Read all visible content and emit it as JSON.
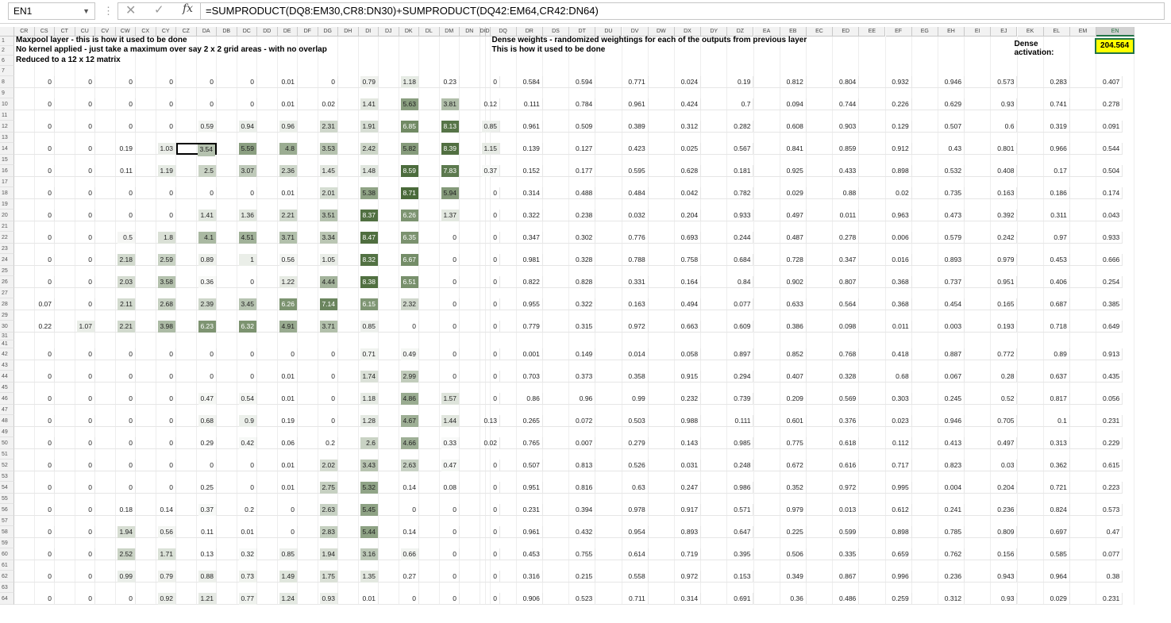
{
  "formula_bar": {
    "name_box": "EN1",
    "fx": "fx",
    "formula": "=SUMPRODUCT(DQ8:EM30,CR8:DN30)+SUMPRODUCT(DQ42:EM64,CR42:DN64)"
  },
  "columns": [
    "CR",
    "CS",
    "CT",
    "CU",
    "CV",
    "CW",
    "CX",
    "CY",
    "CZ",
    "DA",
    "DB",
    "DC",
    "DD",
    "DE",
    "DF",
    "DG",
    "DH",
    "DI",
    "DJ",
    "DK",
    "DL",
    "DM",
    "DN",
    "DO",
    "DP",
    "DQ",
    "DR",
    "DS",
    "DT",
    "DU",
    "DV",
    "DW",
    "DX",
    "DY",
    "DZ",
    "EA",
    "EB",
    "EC",
    "ED",
    "EE",
    "EF",
    "EG",
    "EH",
    "EI",
    "EJ",
    "EK",
    "EL",
    "EM",
    "EN"
  ],
  "rows": [
    "1",
    "2",
    "6",
    "7",
    "8",
    "9",
    "10",
    "11",
    "12",
    "13",
    "14",
    "15",
    "16",
    "17",
    "18",
    "19",
    "20",
    "21",
    "22",
    "23",
    "24",
    "25",
    "26",
    "27",
    "28",
    "29",
    "30",
    "31",
    "41",
    "42",
    "43",
    "44",
    "45",
    "46",
    "47",
    "48",
    "49",
    "50",
    "51",
    "52",
    "53",
    "54",
    "55",
    "56",
    "57",
    "58",
    "59",
    "60",
    "61",
    "62",
    "63",
    "64"
  ],
  "text": {
    "maxpool_line1": "Maxpool  layer - this is how it used to be done",
    "maxpool_line2": "No kernel applied - just take a maximum over say 2 x 2 grid areas - with no overlap",
    "maxpool_line3": "Reduced to a 12 x 12 matrix",
    "dense_line1": "Dense weights - randomized weightings for each of the outputs from previous layer",
    "dense_line2": "This is how it used to be done",
    "dense_activation_label": "Dense activation:",
    "dense_activation_value": "204.564"
  },
  "maxpool": [
    [
      "0",
      "0",
      "0",
      "0",
      "0",
      "0",
      "0.01",
      "0",
      "0.79",
      "1.18",
      "0.23",
      "0"
    ],
    [
      "0",
      "0",
      "0",
      "0",
      "0",
      "0",
      "0.01",
      "0.02",
      "1.41",
      "5.63",
      "3.81",
      "0.12"
    ],
    [
      "0",
      "0",
      "0",
      "0",
      "0.59",
      "0.94",
      "0.96",
      "2.31",
      "1.91",
      "6.85",
      "8.13",
      "0.85"
    ],
    [
      "0",
      "0",
      "0.19",
      "1.03",
      "3.54",
      "5.59",
      "4.8",
      "3.53",
      "2.42",
      "5.82",
      "8.39",
      "1.15"
    ],
    [
      "0",
      "0",
      "0.11",
      "1.19",
      "2.5",
      "3.07",
      "2.36",
      "1.45",
      "1.48",
      "8.59",
      "7.83",
      "0.37"
    ],
    [
      "0",
      "0",
      "0",
      "0",
      "0",
      "0",
      "0.01",
      "2.01",
      "5.38",
      "8.71",
      "5.94",
      "0"
    ],
    [
      "0",
      "0",
      "0",
      "0",
      "1.41",
      "1.36",
      "2.21",
      "3.51",
      "8.37",
      "6.26",
      "1.37",
      "0"
    ],
    [
      "0",
      "0",
      "0.5",
      "1.8",
      "4.1",
      "4.51",
      "3.71",
      "3.34",
      "8.47",
      "6.35",
      "0",
      "0"
    ],
    [
      "0",
      "0",
      "2.18",
      "2.59",
      "0.89",
      "1",
      "0.56",
      "1.05",
      "8.32",
      "6.67",
      "0",
      "0"
    ],
    [
      "0",
      "0",
      "2.03",
      "3.58",
      "0.36",
      "0",
      "1.22",
      "4.44",
      "8.38",
      "6.51",
      "0",
      "0"
    ],
    [
      "0.07",
      "0",
      "2.11",
      "2.68",
      "2.39",
      "3.45",
      "6.26",
      "7.14",
      "6.15",
      "2.32",
      "0",
      "0"
    ],
    [
      "0.22",
      "1.07",
      "2.21",
      "3.98",
      "6.23",
      "6.32",
      "4.91",
      "3.71",
      "0.85",
      "0",
      "0",
      "0"
    ],
    [
      "0",
      "0",
      "0",
      "0",
      "0",
      "0",
      "0",
      "0",
      "0.71",
      "0.49",
      "0",
      "0"
    ],
    [
      "0",
      "0",
      "0",
      "0",
      "0",
      "0",
      "0.01",
      "0",
      "1.74",
      "2.99",
      "0",
      "0"
    ],
    [
      "0",
      "0",
      "0",
      "0",
      "0.47",
      "0.54",
      "0.01",
      "0",
      "1.18",
      "4.86",
      "1.57",
      "0"
    ],
    [
      "0",
      "0",
      "0",
      "0",
      "0.68",
      "0.9",
      "0.19",
      "0",
      "1.28",
      "4.67",
      "1.44",
      "0.13"
    ],
    [
      "0",
      "0",
      "0",
      "0",
      "0.29",
      "0.42",
      "0.06",
      "0.2",
      "2.6",
      "4.66",
      "0.33",
      "0.02"
    ],
    [
      "0",
      "0",
      "0",
      "0",
      "0",
      "0",
      "0.01",
      "2.02",
      "3.43",
      "2.63",
      "0.47",
      "0"
    ],
    [
      "0",
      "0",
      "0",
      "0",
      "0.25",
      "0",
      "0.01",
      "2.75",
      "5.32",
      "0.14",
      "0.08",
      "0"
    ],
    [
      "0",
      "0",
      "0.18",
      "0.14",
      "0.37",
      "0.2",
      "0",
      "2.63",
      "5.45",
      "0",
      "0",
      "0"
    ],
    [
      "0",
      "0",
      "1.94",
      "0.56",
      "0.11",
      "0.01",
      "0",
      "2.83",
      "5.44",
      "0.14",
      "0",
      "0"
    ],
    [
      "0",
      "0",
      "2.52",
      "1.71",
      "0.13",
      "0.32",
      "0.85",
      "1.94",
      "3.16",
      "0.66",
      "0",
      "0"
    ],
    [
      "0",
      "0",
      "0.99",
      "0.79",
      "0.88",
      "0.73",
      "1.49",
      "1.75",
      "1.35",
      "0.27",
      "0",
      "0"
    ],
    [
      "0",
      "0",
      "0",
      "0.92",
      "1.21",
      "0.77",
      "1.24",
      "0.93",
      "0.01",
      "0",
      "0",
      "0"
    ]
  ],
  "weights": [
    [
      "0.584",
      "0.594",
      "0.771",
      "0.024",
      "0.19",
      "0.812",
      "0.804",
      "0.932",
      "0.946",
      "0.573",
      "0.283",
      "0.407"
    ],
    [
      "0.111",
      "0.784",
      "0.961",
      "0.424",
      "0.7",
      "0.094",
      "0.744",
      "0.226",
      "0.629",
      "0.93",
      "0.741",
      "0.278"
    ],
    [
      "0.961",
      "0.509",
      "0.389",
      "0.312",
      "0.282",
      "0.608",
      "0.903",
      "0.129",
      "0.507",
      "0.6",
      "0.319",
      "0.091"
    ],
    [
      "0.139",
      "0.127",
      "0.423",
      "0.025",
      "0.567",
      "0.841",
      "0.859",
      "0.912",
      "0.43",
      "0.801",
      "0.966",
      "0.544"
    ],
    [
      "0.152",
      "0.177",
      "0.595",
      "0.628",
      "0.181",
      "0.925",
      "0.433",
      "0.898",
      "0.532",
      "0.408",
      "0.17",
      "0.504"
    ],
    [
      "0.314",
      "0.488",
      "0.484",
      "0.042",
      "0.782",
      "0.029",
      "0.88",
      "0.02",
      "0.735",
      "0.163",
      "0.186",
      "0.174"
    ],
    [
      "0.322",
      "0.238",
      "0.032",
      "0.204",
      "0.933",
      "0.497",
      "0.011",
      "0.963",
      "0.473",
      "0.392",
      "0.311",
      "0.043"
    ],
    [
      "0.347",
      "0.302",
      "0.776",
      "0.693",
      "0.244",
      "0.487",
      "0.278",
      "0.006",
      "0.579",
      "0.242",
      "0.97",
      "0.933"
    ],
    [
      "0.981",
      "0.328",
      "0.788",
      "0.758",
      "0.684",
      "0.728",
      "0.347",
      "0.016",
      "0.893",
      "0.979",
      "0.453",
      "0.666"
    ],
    [
      "0.822",
      "0.828",
      "0.331",
      "0.164",
      "0.84",
      "0.902",
      "0.807",
      "0.368",
      "0.737",
      "0.951",
      "0.406",
      "0.254"
    ],
    [
      "0.955",
      "0.322",
      "0.163",
      "0.494",
      "0.077",
      "0.633",
      "0.564",
      "0.368",
      "0.454",
      "0.165",
      "0.687",
      "0.385"
    ],
    [
      "0.779",
      "0.315",
      "0.972",
      "0.663",
      "0.609",
      "0.386",
      "0.098",
      "0.011",
      "0.003",
      "0.193",
      "0.718",
      "0.649"
    ],
    [
      "0.001",
      "0.149",
      "0.014",
      "0.058",
      "0.897",
      "0.852",
      "0.768",
      "0.418",
      "0.887",
      "0.772",
      "0.89",
      "0.913"
    ],
    [
      "0.703",
      "0.373",
      "0.358",
      "0.915",
      "0.294",
      "0.407",
      "0.328",
      "0.68",
      "0.067",
      "0.28",
      "0.637",
      "0.435"
    ],
    [
      "0.86",
      "0.96",
      "0.99",
      "0.232",
      "0.739",
      "0.209",
      "0.569",
      "0.303",
      "0.245",
      "0.52",
      "0.817",
      "0.056"
    ],
    [
      "0.265",
      "0.072",
      "0.503",
      "0.988",
      "0.111",
      "0.601",
      "0.376",
      "0.023",
      "0.946",
      "0.705",
      "0.1",
      "0.231"
    ],
    [
      "0.765",
      "0.007",
      "0.279",
      "0.143",
      "0.985",
      "0.775",
      "0.618",
      "0.112",
      "0.413",
      "0.497",
      "0.313",
      "0.229"
    ],
    [
      "0.507",
      "0.813",
      "0.526",
      "0.031",
      "0.248",
      "0.672",
      "0.616",
      "0.717",
      "0.823",
      "0.03",
      "0.362",
      "0.615"
    ],
    [
      "0.951",
      "0.816",
      "0.63",
      "0.247",
      "0.986",
      "0.352",
      "0.972",
      "0.995",
      "0.004",
      "0.204",
      "0.721",
      "0.223"
    ],
    [
      "0.231",
      "0.394",
      "0.978",
      "0.917",
      "0.571",
      "0.979",
      "0.013",
      "0.612",
      "0.241",
      "0.236",
      "0.824",
      "0.573"
    ],
    [
      "0.961",
      "0.432",
      "0.954",
      "0.893",
      "0.647",
      "0.225",
      "0.599",
      "0.898",
      "0.785",
      "0.809",
      "0.697",
      "0.47"
    ],
    [
      "0.453",
      "0.755",
      "0.614",
      "0.719",
      "0.395",
      "0.506",
      "0.335",
      "0.659",
      "0.762",
      "0.156",
      "0.585",
      "0.077"
    ],
    [
      "0.316",
      "0.215",
      "0.558",
      "0.972",
      "0.153",
      "0.349",
      "0.867",
      "0.996",
      "0.236",
      "0.943",
      "0.964",
      "0.38"
    ],
    [
      "0.906",
      "0.523",
      "0.711",
      "0.314",
      "0.691",
      "0.36",
      "0.486",
      "0.259",
      "0.312",
      "0.93",
      "0.029",
      "0.231"
    ]
  ],
  "colors": {
    "heat_low": "#ffffff",
    "heat_high": "#4a6a3a",
    "selection_green": "#217346",
    "highlight_yellow": "#ffff00"
  }
}
